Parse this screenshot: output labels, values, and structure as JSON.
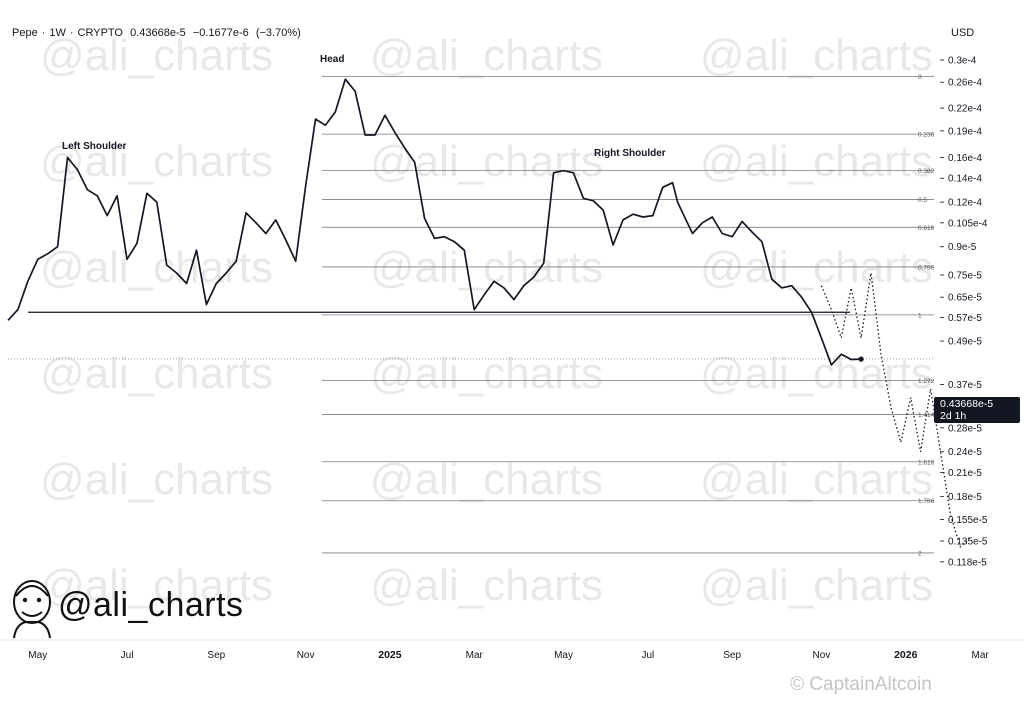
{
  "header": {
    "symbol": "Pepe",
    "interval": "1W",
    "exchange": "CRYPTO",
    "price": "0.43668e-5",
    "change": "−0.1677e-6",
    "change_pct": "(−3.70%)"
  },
  "currency": "USD",
  "price_tag": {
    "price": "0.43668e-5",
    "countdown": "2d 1h"
  },
  "watermark": {
    "handle": "@ali_charts",
    "credit": "CaptainAltcoin",
    "background_text": "@ali_charts"
  },
  "chart_data": {
    "type": "line",
    "title": "",
    "annotations": [
      "Left Shoulder",
      "Head",
      "Right Shoulder"
    ],
    "y_scale": "log",
    "y_tick_labels": [
      "0.3e-4",
      "0.26e-4",
      "0.22e-4",
      "0.19e-4",
      "0.16e-4",
      "0.14e-4",
      "0.12e-4",
      "0.105e-4",
      "0.9e-5",
      "0.75e-5",
      "0.65e-5",
      "0.57e-5",
      "0.49e-5",
      "0.37e-5",
      "0.32e-5",
      "0.28e-5",
      "0.24e-5",
      "0.21e-5",
      "0.18e-5",
      "0.155e-5",
      "0.135e-5",
      "0.118e-5"
    ],
    "y_ticks": [
      3e-05,
      2.6e-05,
      2.2e-05,
      1.9e-05,
      1.6e-05,
      1.4e-05,
      1.2e-05,
      1.05e-05,
      9e-06,
      7.5e-06,
      6.5e-06,
      5.7e-06,
      4.9e-06,
      3.7e-06,
      3.2e-06,
      2.8e-06,
      2.4e-06,
      2.1e-06,
      1.8e-06,
      1.55e-06,
      1.35e-06,
      1.18e-06
    ],
    "x_tick_labels": [
      {
        "label": "May",
        "bold": false
      },
      {
        "label": "Jul",
        "bold": false
      },
      {
        "label": "Sep",
        "bold": false
      },
      {
        "label": "Nov",
        "bold": false
      },
      {
        "label": "2025",
        "bold": true
      },
      {
        "label": "Mar",
        "bold": false
      },
      {
        "label": "May",
        "bold": false
      },
      {
        "label": "Jul",
        "bold": false
      },
      {
        "label": "Sep",
        "bold": false
      },
      {
        "label": "Nov",
        "bold": false
      },
      {
        "label": "2026",
        "bold": true
      },
      {
        "label": "Mar",
        "bold": false
      }
    ],
    "x_tick_weeks": [
      3,
      12,
      21,
      30,
      38.5,
      47,
      56,
      64.5,
      73,
      82,
      90.5,
      98
    ],
    "neckline": 5.9e-06,
    "fib_levels": [
      {
        "label": "0",
        "value": 2.7e-05
      },
      {
        "label": "0.236",
        "value": 1.86e-05
      },
      {
        "label": "0.382",
        "value": 1.47e-05
      },
      {
        "label": "0.5",
        "value": 1.22e-05
      },
      {
        "label": "0.618",
        "value": 1.02e-05
      },
      {
        "label": "0.786",
        "value": 7.9e-06
      },
      {
        "label": "1",
        "value": 5.8e-06
      },
      {
        "label": "1.272",
        "value": 3.8e-06
      },
      {
        "label": "1.414",
        "value": 3.05e-06
      },
      {
        "label": "1.618",
        "value": 2.25e-06
      },
      {
        "label": "1.786",
        "value": 1.75e-06
      },
      {
        "label": "2",
        "value": 1.25e-06
      }
    ],
    "current_price": 4.3668e-06,
    "series": [
      {
        "name": "Pepe",
        "x": [
          0,
          1,
          2,
          3,
          4,
          5,
          6,
          7,
          8,
          9,
          10,
          11,
          12,
          13,
          14,
          15,
          16,
          17,
          18,
          19,
          20,
          21,
          22,
          23,
          24,
          25,
          26,
          27,
          28,
          29,
          30,
          31,
          32,
          33,
          34,
          35,
          36,
          37,
          38,
          39,
          40,
          41,
          42,
          43,
          44,
          45,
          46,
          47,
          48,
          49,
          50,
          51,
          52,
          53,
          54,
          55,
          56,
          57,
          58,
          59,
          60,
          61,
          62,
          63,
          64,
          65,
          66,
          67,
          67.5,
          68,
          69,
          70,
          71,
          72,
          73,
          74,
          75,
          76,
          77,
          78,
          79,
          80,
          81,
          82,
          83,
          84,
          85,
          86
        ],
        "y": [
          5.6e-06,
          6e-06,
          7.2e-06,
          8.3e-06,
          8.6e-06,
          9e-06,
          1.6e-05,
          1.48e-05,
          1.3e-05,
          1.25e-05,
          1.1e-05,
          1.25e-05,
          8.3e-06,
          9.2e-06,
          1.27e-05,
          1.2e-05,
          8e-06,
          7.6e-06,
          7.1e-06,
          8.8e-06,
          6.2e-06,
          7.1e-06,
          7.6e-06,
          8.2e-06,
          1.12e-05,
          1.05e-05,
          9.8e-06,
          1.07e-05,
          9.4e-06,
          8.2e-06,
          1.33e-05,
          2.05e-05,
          1.97e-05,
          2.15e-05,
          2.65e-05,
          2.45e-05,
          1.85e-05,
          1.85e-05,
          2.1e-05,
          1.88e-05,
          1.7e-05,
          1.55e-05,
          1.08e-05,
          9.5e-06,
          9.6e-06,
          9.3e-06,
          8.8e-06,
          6e-06,
          6.6e-06,
          7.2e-06,
          6.9e-06,
          6.4e-06,
          7e-06,
          7.4e-06,
          8.1e-06,
          1.45e-05,
          1.47e-05,
          1.45e-05,
          1.23e-05,
          1.21e-05,
          1.14e-05,
          9.1e-06,
          1.07e-05,
          1.11e-05,
          1.09e-05,
          1.1e-05,
          1.32e-05,
          1.36e-05,
          1.2e-05,
          1.12e-05,
          9.8e-06,
          1.05e-05,
          1.09e-05,
          9.8e-06,
          9.6e-06,
          1.06e-05,
          9.9e-06,
          9.3e-06,
          7.3e-06,
          6.9e-06,
          7e-06,
          6.5e-06,
          5.9e-06,
          5e-06,
          4.2e-06,
          4.5e-06,
          4.35e-06,
          4.36e-06
        ]
      },
      {
        "name": "Projection",
        "x": [
          82,
          83,
          84,
          85,
          86,
          87,
          88,
          89,
          90,
          91,
          92,
          93,
          94,
          95,
          96,
          97
        ],
        "y": [
          7e-06,
          6e-06,
          5e-06,
          6.9e-06,
          5e-06,
          7.6e-06,
          4.5e-06,
          3.2e-06,
          2.55e-06,
          3.4e-06,
          2.4e-06,
          3.6e-06,
          2.4e-06,
          1.6e-06,
          1.3e-06,
          1.38e-06
        ]
      }
    ]
  }
}
